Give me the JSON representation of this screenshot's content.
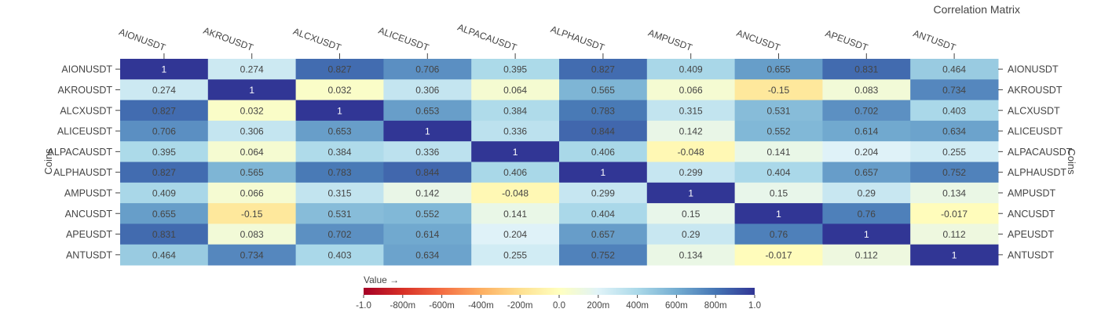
{
  "chart_data": {
    "type": "heatmap",
    "title": "Correlation Matrix",
    "xlabel": "",
    "ylabel": "Coins",
    "ylabel_right": "Coins",
    "x_categories": [
      "AIONUSDT",
      "AKROUSDT",
      "ALCXUSDT",
      "ALICEUSDT",
      "ALPACAUSDT",
      "ALPHAUSDT",
      "AMPUSDT",
      "ANCUSDT",
      "APEUSDT",
      "ANTUSDT"
    ],
    "y_categories": [
      "AIONUSDT",
      "AKROUSDT",
      "ALCXUSDT",
      "ALICEUSDT",
      "ALPACAUSDT",
      "ALPHAUSDT",
      "AMPUSDT",
      "ANCUSDT",
      "APEUSDT",
      "ANTUSDT"
    ],
    "values": [
      [
        1,
        0.274,
        0.827,
        0.706,
        0.395,
        0.827,
        0.409,
        0.655,
        0.831,
        0.464
      ],
      [
        0.274,
        1,
        0.032,
        0.306,
        0.064,
        0.565,
        0.066,
        -0.15,
        0.083,
        0.734
      ],
      [
        0.827,
        0.032,
        1,
        0.653,
        0.384,
        0.783,
        0.315,
        0.531,
        0.702,
        0.403
      ],
      [
        0.706,
        0.306,
        0.653,
        1,
        0.336,
        0.844,
        0.142,
        0.552,
        0.614,
        0.634
      ],
      [
        0.395,
        0.064,
        0.384,
        0.336,
        1,
        0.406,
        -0.048,
        0.141,
        0.204,
        0.255
      ],
      [
        0.827,
        0.565,
        0.783,
        0.844,
        0.406,
        1,
        0.299,
        0.404,
        0.657,
        0.752
      ],
      [
        0.409,
        0.066,
        0.315,
        0.142,
        -0.048,
        0.299,
        1,
        0.15,
        0.29,
        0.134
      ],
      [
        0.655,
        -0.15,
        0.531,
        0.552,
        0.141,
        0.404,
        0.15,
        1,
        0.76,
        -0.017
      ],
      [
        0.831,
        0.083,
        0.702,
        0.614,
        0.204,
        0.657,
        0.29,
        0.76,
        1,
        0.112
      ],
      [
        0.464,
        0.734,
        0.403,
        0.634,
        0.255,
        0.752,
        0.134,
        -0.017,
        0.112,
        1
      ]
    ],
    "value_range": [
      -1,
      1
    ],
    "colorbar": {
      "title": "Value →",
      "ticks": [
        -1,
        -0.8,
        -0.6,
        -0.4,
        -0.2,
        0,
        0.2,
        0.4,
        0.6,
        0.8,
        1
      ],
      "tick_labels": [
        "-1.0",
        "-800m",
        "-600m",
        "-400m",
        "-200m",
        "0.0",
        "200m",
        "400m",
        "600m",
        "800m",
        "1.0"
      ]
    },
    "colorscale": [
      "#a50026",
      "#d73027",
      "#f46d43",
      "#fdae61",
      "#fee090",
      "#ffffbf",
      "#e0f3f8",
      "#abd9e9",
      "#74add1",
      "#4575b4",
      "#313695"
    ],
    "grid": false
  }
}
